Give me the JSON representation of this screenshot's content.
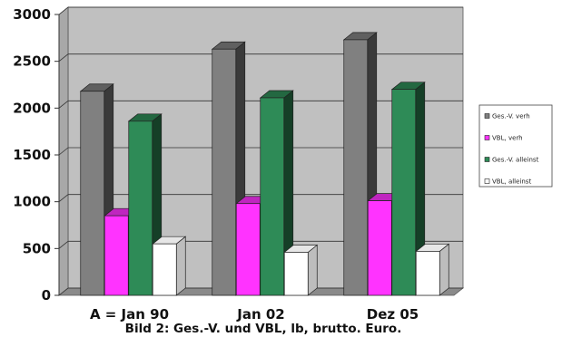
{
  "chart_data": {
    "type": "bar",
    "style": "3d-clustered-column",
    "categories": [
      "A = Jan 90",
      "Jan 02",
      "Dez 05"
    ],
    "series": [
      {
        "name": "Ges.-V. verh",
        "values": [
          2180,
          2630,
          2730
        ],
        "color": "#808080"
      },
      {
        "name": "VBL, verh",
        "values": [
          850,
          980,
          1010
        ],
        "color": "#ff33ff"
      },
      {
        "name": "Ges.-V. alleinst",
        "values": [
          1860,
          2110,
          2200
        ],
        "color": "#2e8b57"
      },
      {
        "name": "VBL, alleinst",
        "values": [
          550,
          460,
          470
        ],
        "color": "#ffffff"
      }
    ],
    "y_ticks": [
      "0",
      "500",
      "1000",
      "1500",
      "2000",
      "2500",
      "3000"
    ],
    "ylim": [
      0,
      3000
    ],
    "grid": true,
    "legend_position": "right",
    "wall_color": "#c0c0c0",
    "title": "",
    "xlabel": "",
    "ylabel": ""
  },
  "caption": "Bild 2: Ges.-V. und VBL, lb, brutto. Euro."
}
